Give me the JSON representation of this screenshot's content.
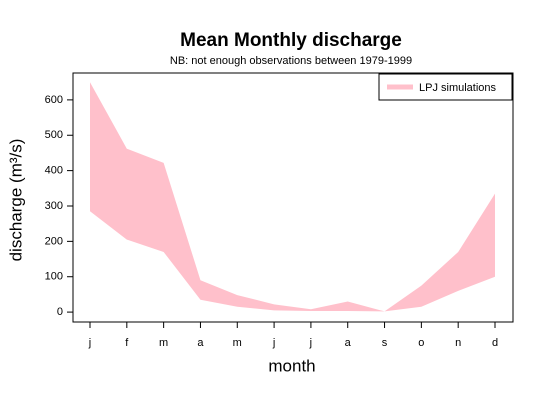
{
  "chart_data": {
    "type": "band",
    "title": "Mean Monthly discharge",
    "subtitle": "NB: not enough observations between 1979-1999",
    "xlabel": "month",
    "ylabel": "discharge (m³/s)",
    "categories": [
      "j",
      "f",
      "m",
      "a",
      "m",
      "j",
      "j",
      "a",
      "s",
      "o",
      "n",
      "d"
    ],
    "series": [
      {
        "name": "LPJ simulations",
        "color": "#ffc0cb",
        "upper": [
          650,
          462,
          422,
          90,
          48,
          22,
          8,
          30,
          2,
          75,
          170,
          335
        ],
        "lower": [
          285,
          205,
          170,
          35,
          15,
          5,
          3,
          3,
          2,
          15,
          60,
          100
        ]
      }
    ],
    "ylim": [
      -28,
      676
    ],
    "yticks": [
      0,
      100,
      200,
      300,
      400,
      500,
      600
    ],
    "legend": "top-right"
  }
}
